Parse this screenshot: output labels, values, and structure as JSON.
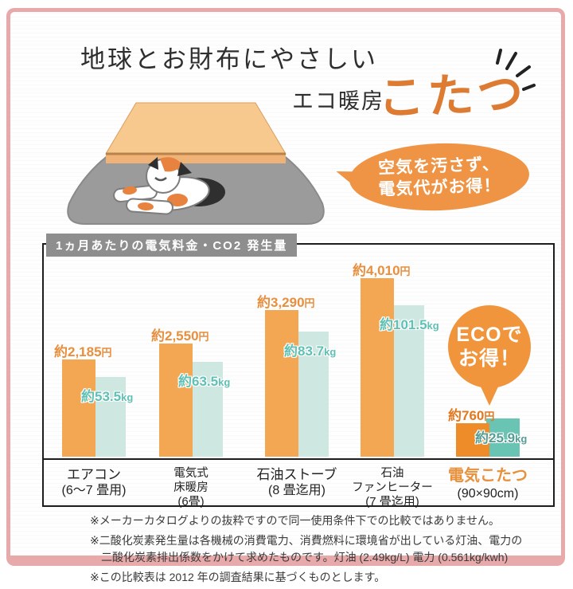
{
  "header": {
    "title": "地球とお財布にやさしい",
    "subtitle_prefix": "エコ暖房",
    "subtitle_main": "こたつ"
  },
  "speech_bubble": {
    "line1": "空気を汚さず、",
    "line2": "電気代がお得！"
  },
  "eco_badge": {
    "line1": "ECOで",
    "line2": "お得！"
  },
  "chart_data": {
    "type": "bar",
    "title": "1ヵ月あたりの電気料金・CO2 発生量",
    "categories": [
      {
        "lines": [
          "エアコン",
          "(6～7 畳用)"
        ],
        "highlight": false
      },
      {
        "lines": [
          "電気式",
          "床暖房",
          "(6畳)"
        ],
        "highlight": false
      },
      {
        "lines": [
          "石油ストーブ",
          "(8 畳迄用)"
        ],
        "highlight": false
      },
      {
        "lines": [
          "石油",
          "ファンヒーター",
          "(7 畳迄用)"
        ],
        "highlight": false
      },
      {
        "lines": [
          "電気こたつ",
          "(90×90cm)"
        ],
        "highlight": true
      }
    ],
    "series": [
      {
        "name": "1ヵ月あたりの電気料金",
        "unit": "円",
        "values": [
          2185,
          2550,
          3290,
          4010,
          760
        ],
        "labels": [
          "約2,185",
          "約2,550",
          "約3,290",
          "約4,010",
          "約760"
        ]
      },
      {
        "name": "1ヵ月あたりのCO2発生量",
        "unit": "kg",
        "values": [
          53.5,
          63.5,
          83.7,
          101.5,
          25.9
        ],
        "labels": [
          "約53.5",
          "約63.5",
          "約83.7",
          "約101.5",
          "約25.9"
        ]
      }
    ],
    "legend": "none",
    "grid": false,
    "ylim_cost": [
      0,
      4010
    ],
    "ylim_co2": [
      0,
      101.5
    ]
  },
  "footnotes": [
    "※メーカーカタログよりの抜粋ですので同一使用条件下での比較ではありません。",
    "※二酸化炭素発生量は各機械の消費電力、消費燃料に環境省が出している灯油、電力の二酸化炭素排出係数をかけて求めたものです。灯油 (2.49kg/L) 電力 (0.561kg/kwh)",
    "※この比較表は 2012 年の調査結果に基づくものとします。"
  ],
  "colors": {
    "bar_cost": "#f4a753",
    "bar_cost_highlight": "#ee8c2a",
    "bar_co2": "#cfe7e1",
    "bar_co2_highlight": "#69c4b4",
    "label_cost": "#e78f3e",
    "label_cost_highlight": "#e2791f",
    "label_co2": "#5fc0b4",
    "label_co2_highlight": "#569e94",
    "label_category_highlight": "#e8913c",
    "accent_orange": "#ef9445",
    "frame_pink": "#e7a9a9",
    "badge_gray": "#8e8e8e"
  }
}
